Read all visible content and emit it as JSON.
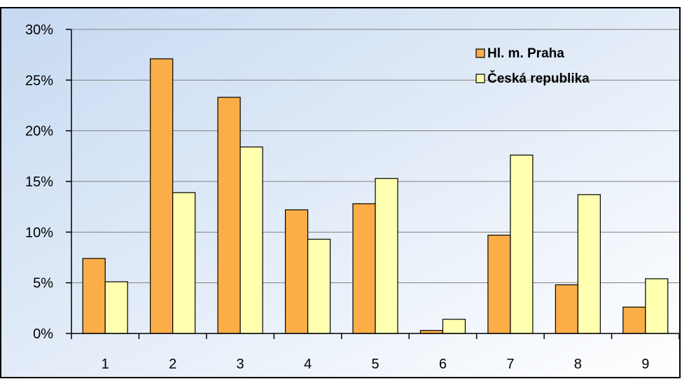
{
  "chart_data": {
    "type": "bar",
    "categories": [
      "1",
      "2",
      "3",
      "4",
      "5",
      "6",
      "7",
      "8",
      "9"
    ],
    "series": [
      {
        "name": "Hl. m. Praha",
        "values": [
          7.4,
          27.1,
          23.3,
          12.2,
          12.8,
          0.3,
          9.7,
          4.8,
          2.6
        ],
        "color": "#FBAE48"
      },
      {
        "name": "Česká republika",
        "values": [
          5.1,
          13.9,
          18.4,
          9.3,
          15.3,
          1.4,
          17.6,
          13.7,
          5.4
        ],
        "color": "#FFFFB0"
      }
    ],
    "y_ticks": [
      "0%",
      "5%",
      "10%",
      "15%",
      "20%",
      "25%",
      "30%"
    ],
    "ylim": [
      0,
      30
    ],
    "y_unit": "%",
    "grid": true,
    "legend_position": "top-right",
    "colors": {
      "plot_background_left": "#C6D9F1",
      "plot_background_right": "#FFFFFF",
      "gridline": "#808080",
      "axis": "#000000"
    }
  }
}
